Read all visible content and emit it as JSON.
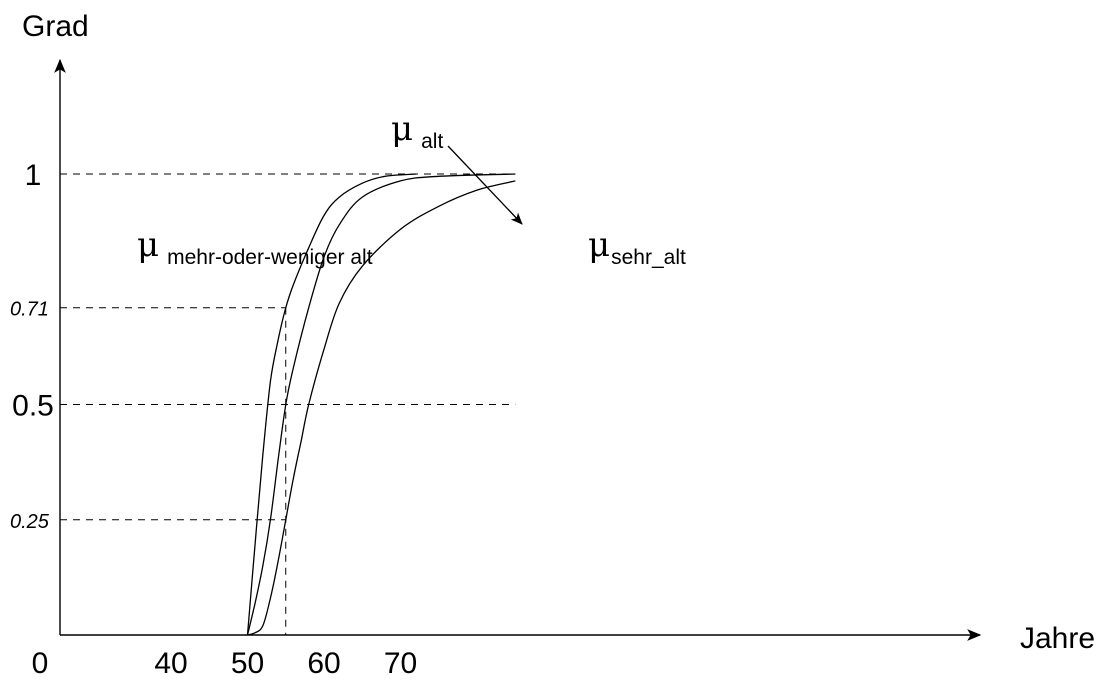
{
  "chart_data": {
    "type": "line",
    "xlabel": "Jahre",
    "ylabel": "Grad",
    "xlim": [
      0,
      86
    ],
    "ylim": [
      0,
      1.25
    ],
    "x_ticks": [
      {
        "value": 0,
        "label": "0"
      },
      {
        "value": 40,
        "label": "40"
      },
      {
        "value": 50,
        "label": "50"
      },
      {
        "value": 60,
        "label": "60"
      },
      {
        "value": 70,
        "label": "70"
      }
    ],
    "y_ticks": [
      {
        "value": 1,
        "label": "1",
        "style": "big"
      },
      {
        "value": 0.71,
        "label": "0.71",
        "style": "small"
      },
      {
        "value": 0.5,
        "label": "0.5",
        "style": "big"
      },
      {
        "value": 0.25,
        "label": "0.25",
        "style": "small"
      }
    ],
    "guides": {
      "horizontal": [
        {
          "y": 1,
          "x_end": 85
        },
        {
          "y": 0.71,
          "x_end": 55
        },
        {
          "y": 0.5,
          "x_end": 85
        },
        {
          "y": 0.25,
          "x_end": 55
        }
      ],
      "vertical": [
        {
          "x": 55,
          "y_top": 0.71
        }
      ]
    },
    "series": [
      {
        "key": "mehr_oder_weniger_alt",
        "x": [
          50,
          51,
          52,
          53,
          54,
          55,
          56,
          58,
          60,
          62,
          65,
          68,
          72
        ],
        "y": [
          0,
          0.2,
          0.39,
          0.55,
          0.64,
          0.71,
          0.76,
          0.84,
          0.91,
          0.95,
          0.98,
          0.995,
          1.0
        ]
      },
      {
        "key": "alt",
        "x": [
          50,
          51,
          52,
          53,
          54,
          55,
          56,
          58,
          60,
          62,
          65,
          70,
          75,
          85
        ],
        "y": [
          0,
          0.07,
          0.15,
          0.25,
          0.38,
          0.5,
          0.58,
          0.71,
          0.82,
          0.89,
          0.95,
          0.985,
          0.995,
          1.0
        ]
      },
      {
        "key": "sehr_alt",
        "x": [
          50,
          51,
          52,
          53,
          54,
          55,
          56,
          57,
          58,
          60,
          62,
          65,
          70,
          75,
          80,
          85
        ],
        "y": [
          0,
          0.005,
          0.02,
          0.08,
          0.16,
          0.25,
          0.34,
          0.42,
          0.5,
          0.62,
          0.72,
          0.8,
          0.88,
          0.93,
          0.965,
          0.985
        ]
      }
    ],
    "annotations": [
      {
        "key": "mehr_oder_weniger_alt",
        "symbol": "μ",
        "subscript": "mehr-oder-weniger alt",
        "x": 9,
        "y": 0.81
      },
      {
        "key": "alt",
        "symbol": "μ",
        "subscript": "alt",
        "x": 34,
        "y": 1.1
      },
      {
        "key": "sehr_alt",
        "symbol": "μ",
        "subscript": "sehr_alt",
        "x": 55,
        "y": 0.81
      }
    ],
    "arrow": {
      "from": [
        40,
        1.06
      ],
      "to": [
        46.5,
        0.89
      ]
    }
  }
}
